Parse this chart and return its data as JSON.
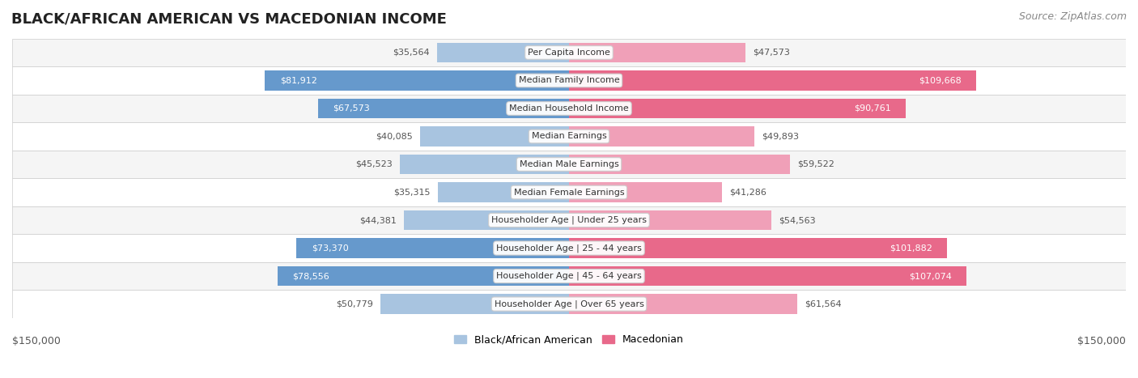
{
  "title": "BLACK/AFRICAN AMERICAN VS MACEDONIAN INCOME",
  "source": "Source: ZipAtlas.com",
  "categories": [
    "Per Capita Income",
    "Median Family Income",
    "Median Household Income",
    "Median Earnings",
    "Median Male Earnings",
    "Median Female Earnings",
    "Householder Age | Under 25 years",
    "Householder Age | 25 - 44 years",
    "Householder Age | 45 - 64 years",
    "Householder Age | Over 65 years"
  ],
  "black_values": [
    35564,
    81912,
    67573,
    40085,
    45523,
    35315,
    44381,
    73370,
    78556,
    50779
  ],
  "macedonian_values": [
    47573,
    109668,
    90761,
    49893,
    59522,
    41286,
    54563,
    101882,
    107074,
    61564
  ],
  "black_labels": [
    "$35,564",
    "$81,912",
    "$67,573",
    "$40,085",
    "$45,523",
    "$35,315",
    "$44,381",
    "$73,370",
    "$78,556",
    "$50,779"
  ],
  "macedonian_labels": [
    "$47,573",
    "$109,668",
    "$90,761",
    "$49,893",
    "$59,522",
    "$41,286",
    "$54,563",
    "$101,882",
    "$107,074",
    "$61,564"
  ],
  "max_value": 150000,
  "color_black_light": "#a8c4e0",
  "color_black_dark": "#6699cc",
  "color_mac_light": "#f0a0b8",
  "color_mac_dark": "#e8698a",
  "bg_row_light": "#f5f5f5",
  "bg_row_dark": "#ffffff",
  "legend_label_black": "Black/African American",
  "legend_label_mac": "Macedonian",
  "x_label_left": "$150,000",
  "x_label_right": "$150,000"
}
